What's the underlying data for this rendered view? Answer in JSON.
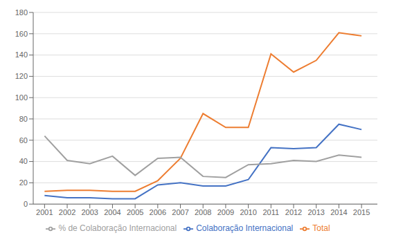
{
  "chart_data": {
    "type": "line",
    "x": [
      2001,
      2002,
      2003,
      2004,
      2005,
      2006,
      2007,
      2008,
      2009,
      2010,
      2011,
      2012,
      2013,
      2014,
      2015
    ],
    "xlim": [
      2000.5,
      2015.7
    ],
    "xticks": [
      2001,
      2002,
      2003,
      2004,
      2005,
      2006,
      2007,
      2008,
      2009,
      2010,
      2011,
      2012,
      2013,
      2014,
      2015
    ],
    "ylim": [
      0,
      180
    ],
    "yticks": [
      0,
      20,
      40,
      60,
      80,
      100,
      120,
      140,
      160,
      180
    ],
    "grid": "y",
    "legend": "bottom",
    "series": [
      {
        "name": "Colaboração Internacional",
        "color": "#4472C4",
        "values": [
          8,
          6,
          6,
          5,
          5,
          18,
          20,
          17,
          17,
          23,
          53,
          52,
          53,
          75,
          70
        ]
      },
      {
        "name": "Total",
        "color": "#ED7D31",
        "values": [
          12,
          13,
          13,
          12,
          12,
          22,
          43,
          85,
          72,
          72,
          141,
          124,
          135,
          161,
          158
        ]
      },
      {
        "name": "% de Colaboração Internacional",
        "color": "#A0A0A0",
        "values": [
          64,
          41,
          38,
          45,
          27,
          43,
          44,
          26,
          25,
          37,
          38,
          41,
          40,
          46,
          44
        ]
      }
    ]
  }
}
